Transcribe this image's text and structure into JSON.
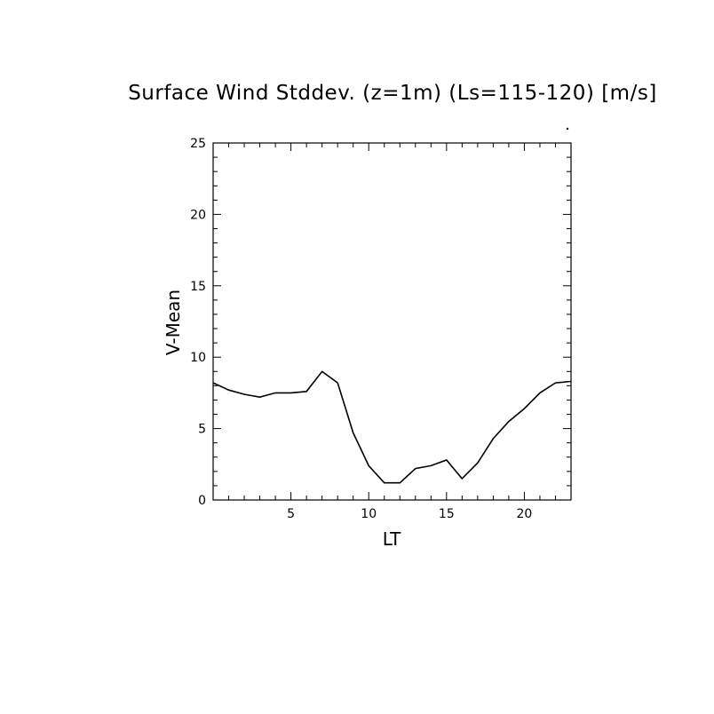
{
  "chart_data": {
    "type": "line",
    "title": "Surface Wind Stddev. (z=1m) (Ls=115-120) [m/s]",
    "xlabel": "LT",
    "ylabel": "V-Mean",
    "xlim": [
      0,
      23
    ],
    "ylim": [
      0,
      25
    ],
    "xticks": [
      5,
      10,
      15,
      20
    ],
    "yticks": [
      0,
      5,
      10,
      15,
      20,
      25
    ],
    "grid": false,
    "legend": "none",
    "series": [
      {
        "x": [
          0,
          1,
          2,
          3,
          4,
          5,
          6,
          7,
          8,
          9,
          10,
          11,
          12,
          13,
          14,
          15,
          16,
          17,
          18,
          19,
          20,
          21,
          22,
          23
        ],
        "values": [
          8.2,
          7.7,
          7.4,
          7.2,
          7.5,
          7.5,
          7.6,
          9.0,
          8.2,
          4.7,
          2.4,
          1.2,
          1.2,
          2.2,
          2.4,
          2.8,
          1.5,
          2.6,
          4.3,
          5.5,
          6.4,
          7.5,
          8.2,
          8.3
        ],
        "color": "#000000"
      }
    ]
  }
}
